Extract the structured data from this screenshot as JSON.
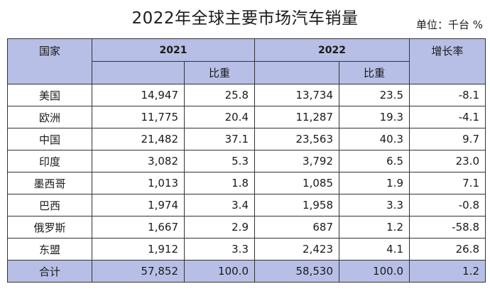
{
  "title": "2022年全球主要市场汽车销量",
  "unit": "单位：千台 %",
  "headers": {
    "country": "国家",
    "year2021": "2021",
    "year2022": "2022",
    "share": "比重",
    "growth": "增长率"
  },
  "rows": [
    {
      "name": "美国",
      "v2021": "14,947",
      "s2021": "25.8",
      "v2022": "13,734",
      "s2022": "23.5",
      "growth": "-8.1"
    },
    {
      "name": "欧洲",
      "v2021": "11,775",
      "s2021": "20.4",
      "v2022": "11,287",
      "s2022": "19.3",
      "growth": "-4.1"
    },
    {
      "name": "中国",
      "v2021": "21,482",
      "s2021": "37.1",
      "v2022": "23,563",
      "s2022": "40.3",
      "growth": "9.7"
    },
    {
      "name": "印度",
      "v2021": "3,082",
      "s2021": "5.3",
      "v2022": "3,792",
      "s2022": "6.5",
      "growth": "23.0"
    },
    {
      "name": "墨西哥",
      "v2021": "1,013",
      "s2021": "1.8",
      "v2022": "1,085",
      "s2022": "1.9",
      "growth": "7.1"
    },
    {
      "name": "巴西",
      "v2021": "1,974",
      "s2021": "3.4",
      "v2022": "1,958",
      "s2022": "3.3",
      "growth": "-0.8"
    },
    {
      "name": "俄罗斯",
      "v2021": "1,667",
      "s2021": "2.9",
      "v2022": "687",
      "s2022": "1.2",
      "growth": "-58.8"
    },
    {
      "name": "东盟",
      "v2021": "1,912",
      "s2021": "3.3",
      "v2022": "2,423",
      "s2022": "4.1",
      "growth": "26.8"
    }
  ],
  "total": {
    "name": "合计",
    "v2021": "57,852",
    "s2021": "100.0",
    "v2022": "58,530",
    "s2022": "100.0",
    "growth": "1.2"
  },
  "colors": {
    "header_bg": "#b7bfe6",
    "border": "#333333"
  },
  "chart_data": {
    "type": "table",
    "title": "2022年全球主要市场汽车销量",
    "unit": "单位：千台 %",
    "columns": [
      "国家",
      "2021",
      "2021 比重",
      "2022",
      "2022 比重",
      "增长率"
    ],
    "categories": [
      "美国",
      "欧洲",
      "中国",
      "印度",
      "墨西哥",
      "巴西",
      "俄罗斯",
      "东盟",
      "合计"
    ],
    "series": [
      {
        "name": "2021",
        "values": [
          14947,
          11775,
          21482,
          3082,
          1013,
          1974,
          1667,
          1912,
          57852
        ]
      },
      {
        "name": "2021 比重",
        "values": [
          25.8,
          20.4,
          37.1,
          5.3,
          1.8,
          3.4,
          2.9,
          3.3,
          100.0
        ]
      },
      {
        "name": "2022",
        "values": [
          13734,
          11287,
          23563,
          3792,
          1085,
          1958,
          687,
          2423,
          58530
        ]
      },
      {
        "name": "2022 比重",
        "values": [
          23.5,
          19.3,
          40.3,
          6.5,
          1.9,
          3.3,
          1.2,
          4.1,
          100.0
        ]
      },
      {
        "name": "增长率",
        "values": [
          -8.1,
          -4.1,
          9.7,
          23.0,
          7.1,
          -0.8,
          -58.8,
          26.8,
          1.2
        ]
      }
    ]
  }
}
